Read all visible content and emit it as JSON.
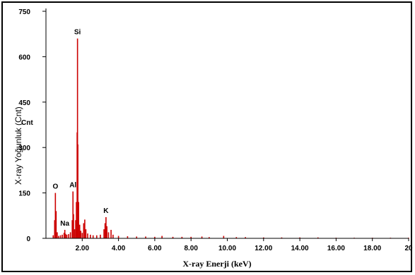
{
  "chart_data": {
    "type": "bar",
    "title": "",
    "xlabel": "X-ray Enerji (keV)",
    "ylabel": "X-ray Yoğunluk (Cnt)",
    "xlim": [
      0,
      20
    ],
    "ylim": [
      0,
      750
    ],
    "xticks": [
      {
        "value": 2,
        "label": "2.00"
      },
      {
        "value": 4,
        "label": "4.00"
      },
      {
        "value": 6,
        "label": "6.00"
      },
      {
        "value": 8,
        "label": "8.00"
      },
      {
        "value": 10,
        "label": "10.00"
      },
      {
        "value": 12,
        "label": "12.00"
      },
      {
        "value": 14,
        "label": "14.00"
      },
      {
        "value": 16,
        "label": "16.00"
      },
      {
        "value": 18,
        "label": "18.00"
      },
      {
        "value": 20,
        "label": "20"
      }
    ],
    "yticks": [
      {
        "value": 0,
        "label": "0"
      },
      {
        "value": 150,
        "label": "150"
      },
      {
        "value": 300,
        "label": "300"
      },
      {
        "value": 450,
        "label": "450"
      },
      {
        "value": 600,
        "label": "600"
      },
      {
        "value": 750,
        "label": "750"
      }
    ],
    "series_label": "Cnt",
    "series_color": "#cc0000",
    "peaks": [
      {
        "element": "O",
        "energy": 0.52,
        "counts": 150
      },
      {
        "element": "Na",
        "energy": 1.04,
        "counts": 28
      },
      {
        "element": "Al",
        "energy": 1.49,
        "counts": 155
      },
      {
        "element": "Si",
        "energy": 1.74,
        "counts": 660
      },
      {
        "element": "K",
        "energy": 3.31,
        "counts": 70
      }
    ],
    "spectrum": [
      [
        0.4,
        10
      ],
      [
        0.48,
        60
      ],
      [
        0.52,
        150
      ],
      [
        0.56,
        90
      ],
      [
        0.62,
        20
      ],
      [
        0.7,
        8
      ],
      [
        0.8,
        10
      ],
      [
        0.9,
        12
      ],
      [
        1.0,
        18
      ],
      [
        1.04,
        28
      ],
      [
        1.08,
        15
      ],
      [
        1.15,
        12
      ],
      [
        1.25,
        14
      ],
      [
        1.35,
        20
      ],
      [
        1.45,
        60
      ],
      [
        1.49,
        155
      ],
      [
        1.52,
        80
      ],
      [
        1.58,
        30
      ],
      [
        1.64,
        60
      ],
      [
        1.68,
        120
      ],
      [
        1.72,
        350
      ],
      [
        1.74,
        660
      ],
      [
        1.76,
        310
      ],
      [
        1.8,
        120
      ],
      [
        1.86,
        45
      ],
      [
        1.92,
        25
      ],
      [
        2.0,
        18
      ],
      [
        2.08,
        50
      ],
      [
        2.14,
        62
      ],
      [
        2.2,
        30
      ],
      [
        2.3,
        16
      ],
      [
        2.45,
        12
      ],
      [
        2.6,
        10
      ],
      [
        2.8,
        10
      ],
      [
        3.0,
        12
      ],
      [
        3.2,
        30
      ],
      [
        3.26,
        50
      ],
      [
        3.31,
        70
      ],
      [
        3.36,
        40
      ],
      [
        3.45,
        20
      ],
      [
        3.59,
        28
      ],
      [
        3.7,
        12
      ],
      [
        4.0,
        8
      ],
      [
        4.5,
        7
      ],
      [
        5.0,
        6
      ],
      [
        5.5,
        6
      ],
      [
        6.0,
        5
      ],
      [
        6.4,
        8
      ],
      [
        7.0,
        5
      ],
      [
        7.5,
        5
      ],
      [
        8.0,
        5
      ],
      [
        8.6,
        6
      ],
      [
        9.0,
        4
      ],
      [
        9.8,
        8
      ],
      [
        10.5,
        4
      ],
      [
        11.0,
        4
      ],
      [
        12.0,
        3
      ],
      [
        13.0,
        3
      ],
      [
        14.0,
        3
      ],
      [
        15.0,
        3
      ],
      [
        16.0,
        2
      ],
      [
        17.0,
        2
      ],
      [
        18.0,
        2
      ],
      [
        19.0,
        2
      ],
      [
        20.0,
        2
      ]
    ]
  }
}
